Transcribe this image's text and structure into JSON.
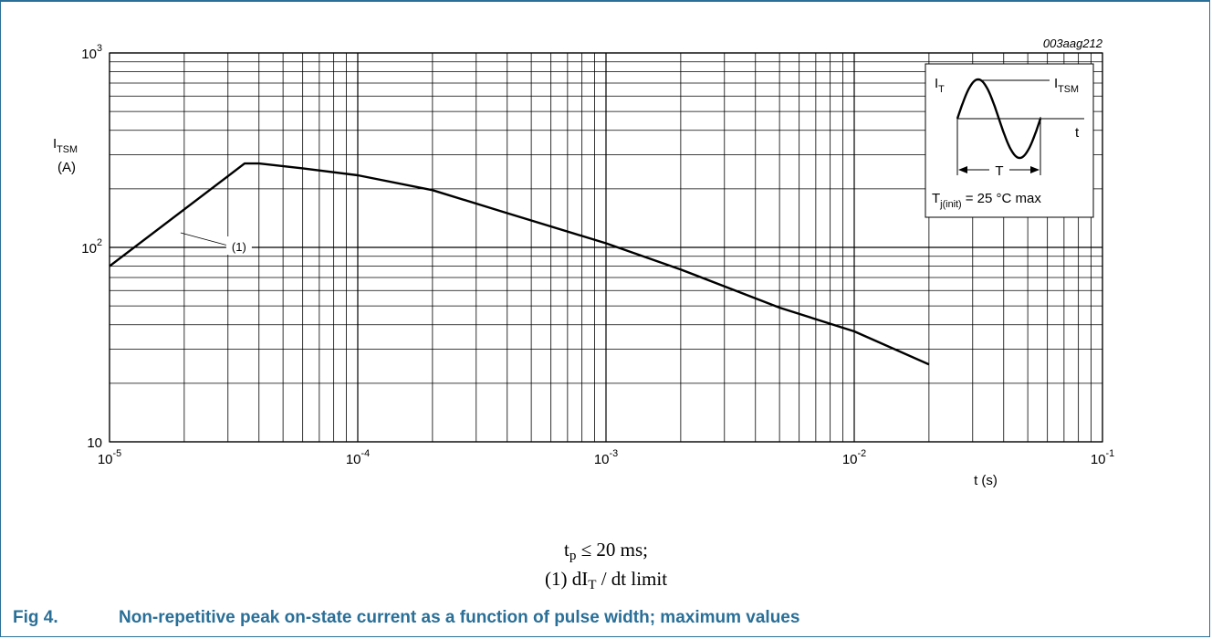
{
  "figure_id": "003aag212",
  "note_line1": {
    "pre": "t",
    "sub": "p",
    "post": " ≤ 20 ms;"
  },
  "note_line2": {
    "pre": "(1) dI",
    "sub": "T",
    "post": " / dt limit"
  },
  "caption": {
    "label": "Fig 4.",
    "text": "Non-repetitive peak on-state current as a function of pulse width; maximum values"
  },
  "chart_data": {
    "type": "line",
    "x_scale": "log",
    "y_scale": "log",
    "xlim": [
      1e-05,
      0.1
    ],
    "ylim": [
      10,
      1000
    ],
    "grid": true,
    "xlabel": "t (s)",
    "ylabel": {
      "main": "I",
      "sub": "TSM",
      "unit": "(A)"
    },
    "x_tick_labels": [
      {
        "value": 1e-05,
        "base": "10",
        "exp": "-5"
      },
      {
        "value": 0.0001,
        "base": "10",
        "exp": "-4"
      },
      {
        "value": 0.001,
        "base": "10",
        "exp": "-3"
      },
      {
        "value": 0.01,
        "base": "10",
        "exp": "-2"
      },
      {
        "value": 0.1,
        "base": "10",
        "exp": "-1"
      }
    ],
    "y_tick_labels": [
      {
        "value": 10,
        "base": "10",
        "exp": ""
      },
      {
        "value": 100,
        "base": "10",
        "exp": "2"
      },
      {
        "value": 1000,
        "base": "10",
        "exp": "3"
      }
    ],
    "series": [
      {
        "x": [
          1e-05,
          3.5e-05,
          4e-05,
          6e-05,
          0.0001,
          0.0002,
          0.0004,
          0.001,
          0.002,
          0.005,
          0.01,
          0.02
        ],
        "y": [
          80,
          270,
          270,
          255,
          235,
          197,
          150,
          105,
          77,
          49,
          37,
          25
        ]
      }
    ],
    "annotation": {
      "text": "(1)",
      "x": 2e-05,
      "y": 100
    },
    "inset": {
      "label_it": {
        "main": "I",
        "sub": "T"
      },
      "label_itsm": {
        "main": "I",
        "sub": "TSM"
      },
      "label_t": "t",
      "label_period": "T",
      "label_tj": {
        "main": "T",
        "sub": "j(init)",
        "post": " = 25 °C max"
      }
    }
  }
}
